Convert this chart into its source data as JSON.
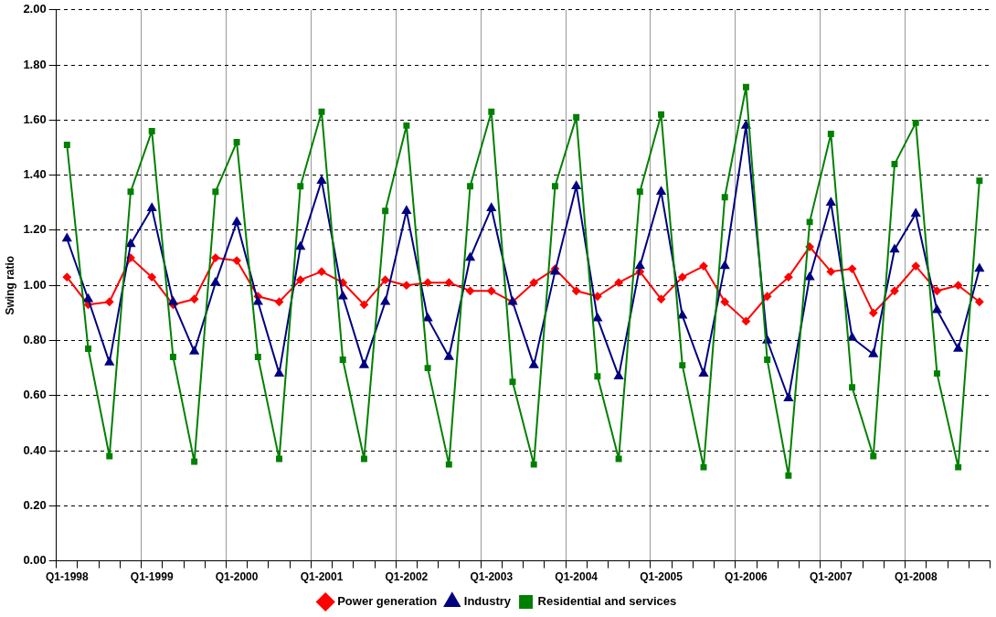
{
  "chart_data": {
    "type": "line",
    "ylabel": "Swing ratio",
    "categories": [
      "Q1-1998",
      null,
      null,
      null,
      "Q1-1999",
      null,
      null,
      null,
      "Q1-2000",
      null,
      null,
      null,
      "Q1-2001",
      null,
      null,
      null,
      "Q1-2002",
      null,
      null,
      null,
      "Q1-2003",
      null,
      null,
      null,
      "Q1-2004",
      null,
      null,
      null,
      "Q1-2005",
      null,
      null,
      null,
      "Q1-2006",
      null,
      null,
      null,
      "Q1-2007",
      null,
      null,
      null,
      "Q1-2008",
      null,
      null,
      null
    ],
    "ylim": [
      0,
      2
    ],
    "yticks": [
      {
        "value": 0,
        "label": "0.00"
      },
      {
        "value": 0.2,
        "label": "0.20"
      },
      {
        "value": 0.4,
        "label": "0.40"
      },
      {
        "value": 0.6,
        "label": "0.60"
      },
      {
        "value": 0.8,
        "label": "0.80"
      },
      {
        "value": 1,
        "label": "1.00"
      },
      {
        "value": 1.2,
        "label": "1.20"
      },
      {
        "value": 1.4,
        "label": "1.40"
      },
      {
        "value": 1.6,
        "label": "1.60"
      },
      {
        "value": 1.8,
        "label": "1.80"
      },
      {
        "value": 2,
        "label": "2.00"
      }
    ],
    "grid": true,
    "legend": "bottom",
    "line_style": "solid",
    "series": [
      {
        "name": "Power generation",
        "color": "#ff0000",
        "marker": "diamond",
        "values": [
          1.03,
          0.93,
          0.94,
          1.1,
          1.03,
          0.93,
          0.95,
          1.1,
          1.09,
          0.96,
          0.94,
          1.02,
          1.05,
          1.01,
          0.93,
          1.02,
          1.0,
          1.01,
          1.01,
          0.98,
          0.98,
          0.94,
          1.01,
          1.06,
          0.98,
          0.96,
          1.01,
          1.05,
          0.95,
          1.03,
          1.07,
          0.94,
          0.87,
          0.96,
          1.03,
          1.14,
          1.05,
          1.06,
          0.9,
          0.98,
          1.07,
          0.98,
          1.0,
          0.94
        ]
      },
      {
        "name": "Industry",
        "color": "#000080",
        "marker": "triangle",
        "values": [
          1.17,
          0.95,
          0.72,
          1.15,
          1.28,
          0.94,
          0.76,
          1.01,
          1.23,
          0.94,
          0.68,
          1.14,
          1.38,
          0.96,
          0.71,
          0.94,
          1.27,
          0.88,
          0.74,
          1.1,
          1.28,
          0.94,
          0.71,
          1.05,
          1.36,
          0.88,
          0.67,
          1.07,
          1.34,
          0.89,
          0.68,
          1.07,
          1.58,
          0.8,
          0.59,
          1.03,
          1.3,
          0.81,
          0.75,
          1.13,
          1.26,
          0.91,
          0.77,
          1.06
        ]
      },
      {
        "name": "Residential and services",
        "color": "#008000",
        "marker": "square",
        "values": [
          1.51,
          0.77,
          0.38,
          1.34,
          1.56,
          0.74,
          0.36,
          1.34,
          1.52,
          0.74,
          0.37,
          1.36,
          1.63,
          0.73,
          0.37,
          1.27,
          1.58,
          0.7,
          0.35,
          1.36,
          1.63,
          0.65,
          0.35,
          1.36,
          1.61,
          0.67,
          0.37,
          1.34,
          1.62,
          0.71,
          0.34,
          1.32,
          1.72,
          0.73,
          0.31,
          1.23,
          1.55,
          0.63,
          0.38,
          1.44,
          1.59,
          0.68,
          0.34,
          1.38
        ]
      }
    ]
  }
}
